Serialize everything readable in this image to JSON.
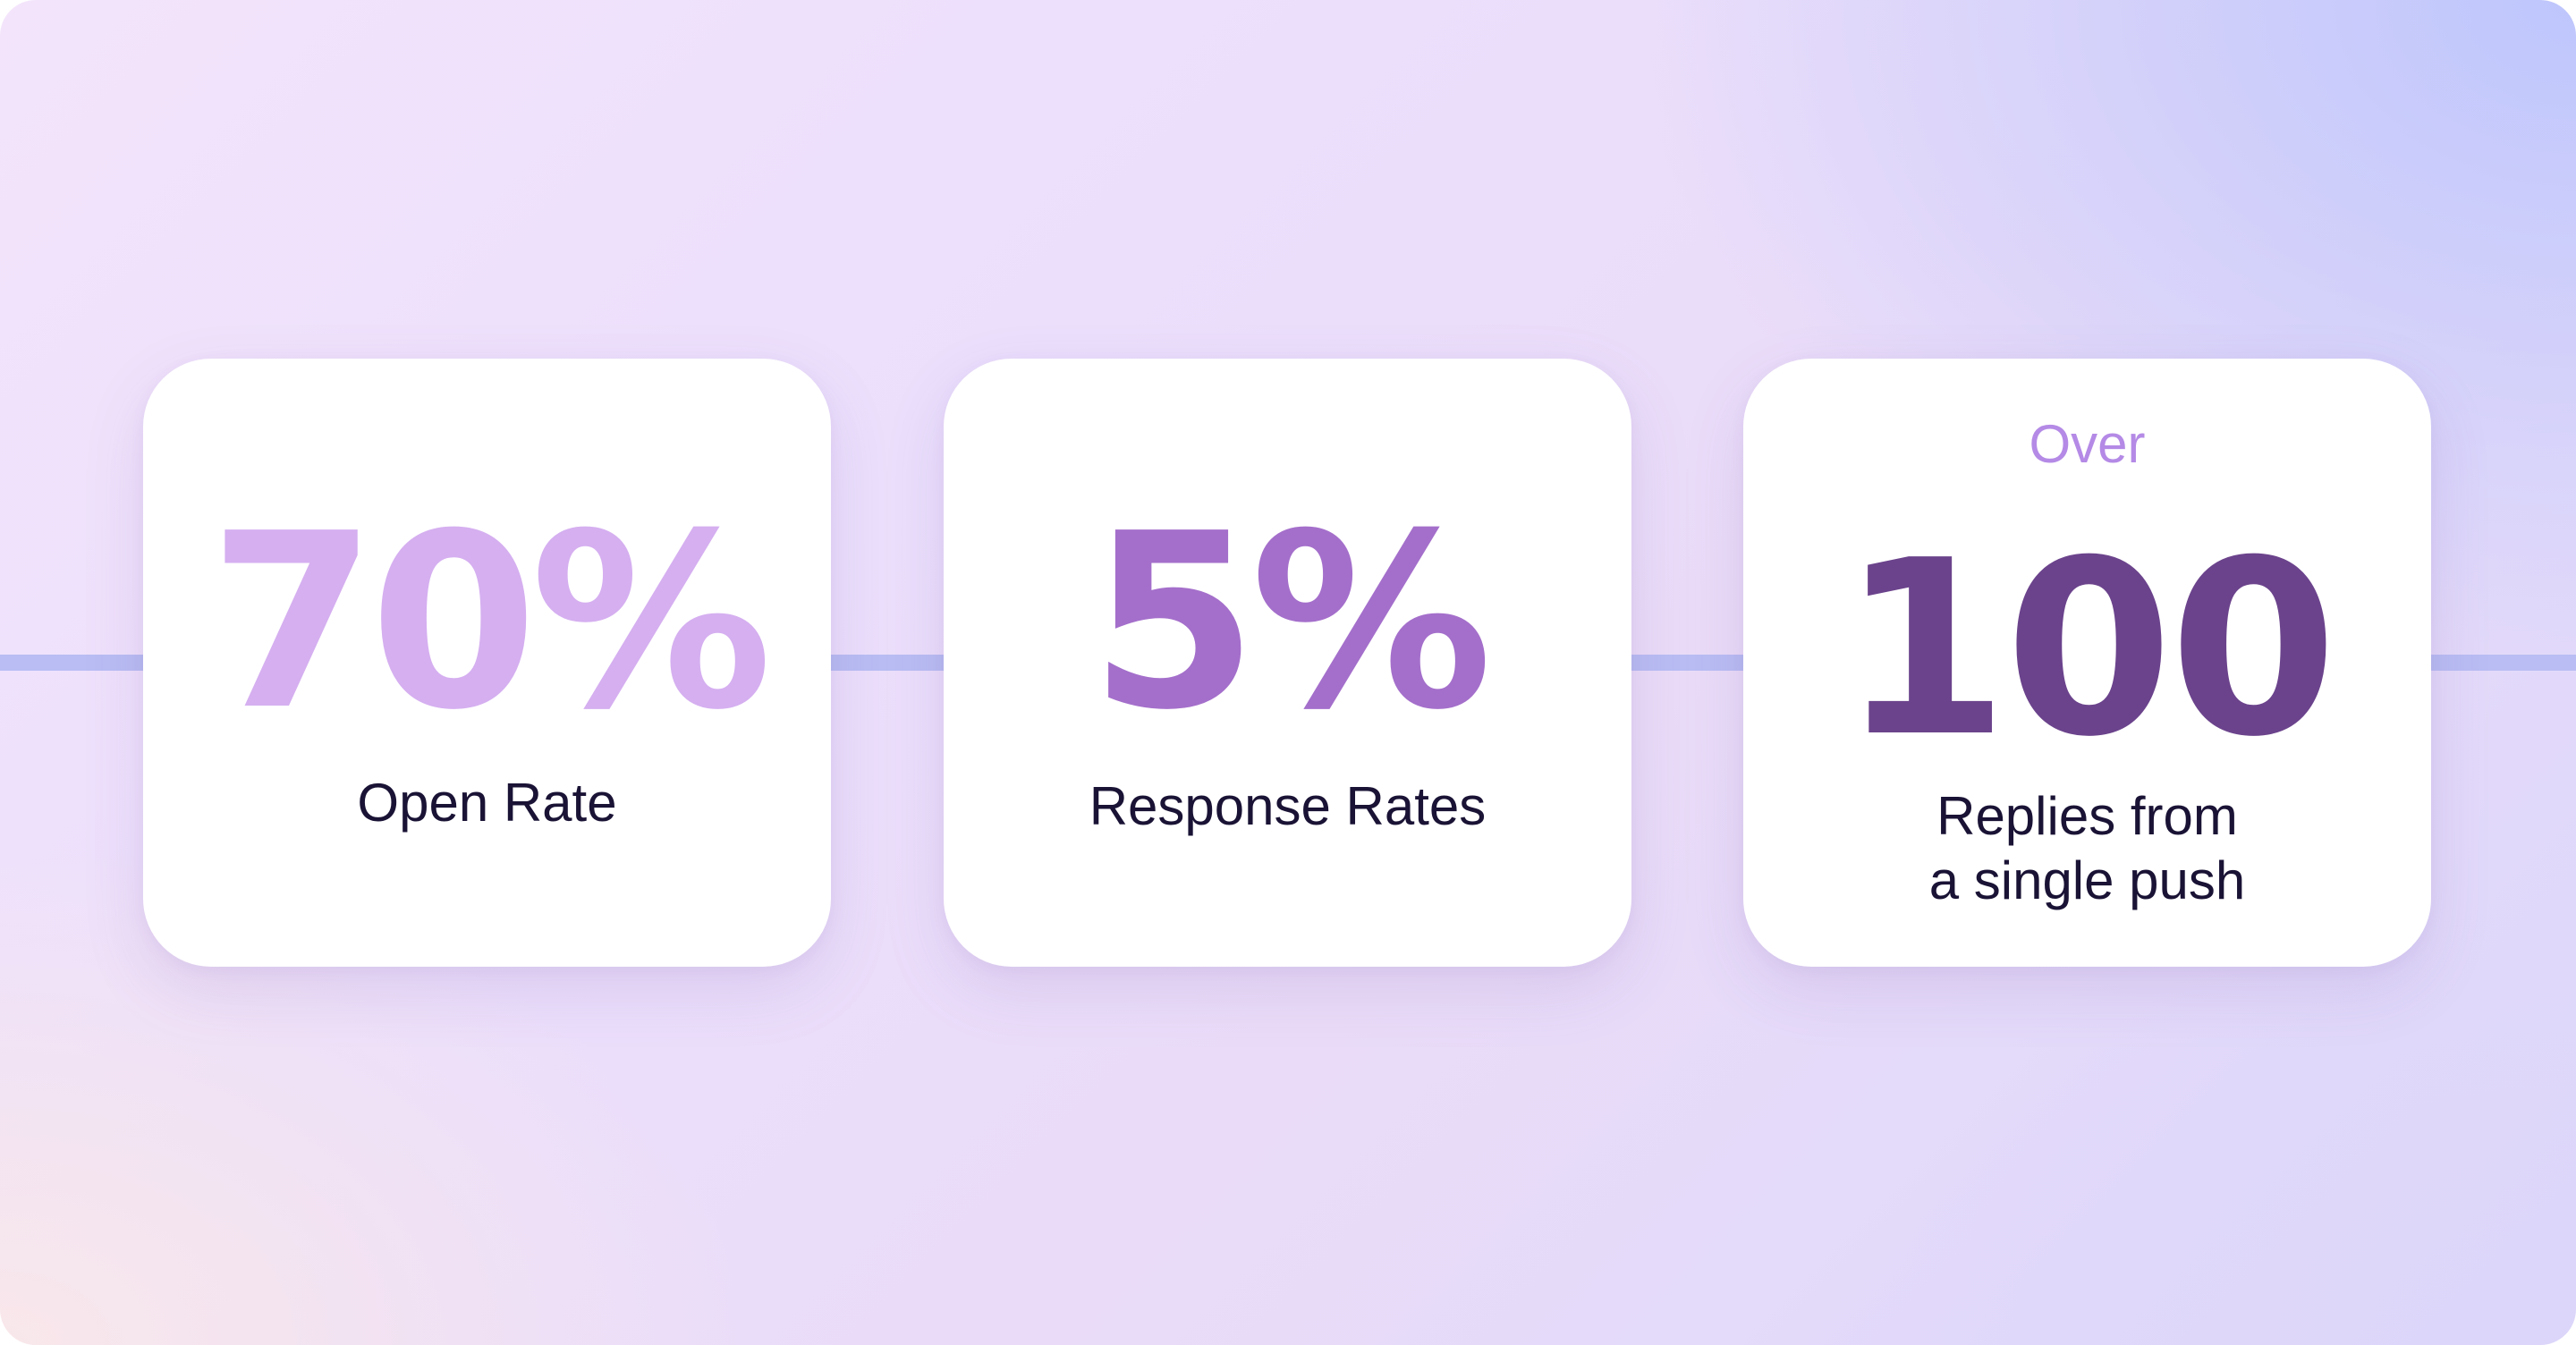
{
  "stats": [
    {
      "value": "70%",
      "label": "Open Rate",
      "color": "#d5aff0"
    },
    {
      "value": "5%",
      "label": "Response Rates",
      "color": "#a46fcb"
    },
    {
      "prefix": "Over",
      "value": "100",
      "label_line1": "Replies from",
      "label_line2": "a single push",
      "color": "#6b438c"
    }
  ],
  "colors": {
    "connector": "#b9bdf3",
    "label_text": "#1a1335",
    "prefix_text": "#b48ae6",
    "card_background": "#ffffff"
  }
}
